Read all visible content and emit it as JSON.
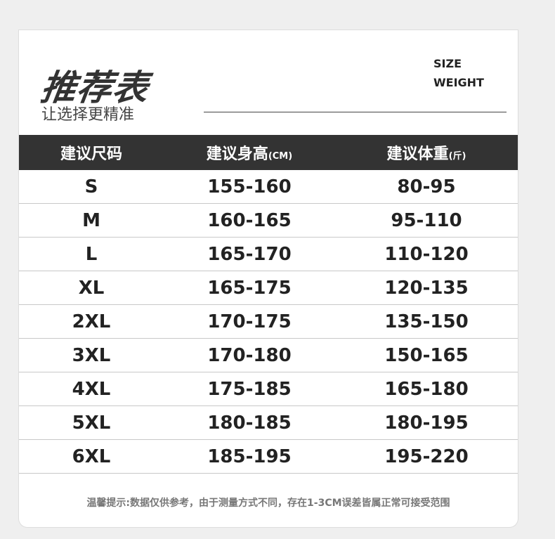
{
  "header": {
    "title": "推荐表",
    "subtitle": "让选择更精准",
    "tag1": "SIZE",
    "tag2": "WEIGHT"
  },
  "table": {
    "columns": [
      {
        "label": "建议尺码",
        "unit": ""
      },
      {
        "label": "建议身高",
        "unit": "(CM)"
      },
      {
        "label": "建议体重",
        "unit": "(斤)"
      }
    ],
    "rows": [
      [
        "S",
        "155-160",
        "80-95"
      ],
      [
        "M",
        "160-165",
        "95-110"
      ],
      [
        "L",
        "165-170",
        "110-120"
      ],
      [
        "XL",
        "165-175",
        "120-135"
      ],
      [
        "2XL",
        "170-175",
        "135-150"
      ],
      [
        "3XL",
        "170-180",
        "150-165"
      ],
      [
        "4XL",
        "175-185",
        "165-180"
      ],
      [
        "5XL",
        "180-185",
        "180-195"
      ],
      [
        "6XL",
        "185-195",
        "195-220"
      ]
    ]
  },
  "note": "温馨提示:数据仅供参考，由于测量方式不同，存在1-3CM误差皆属正常可接受范围"
}
